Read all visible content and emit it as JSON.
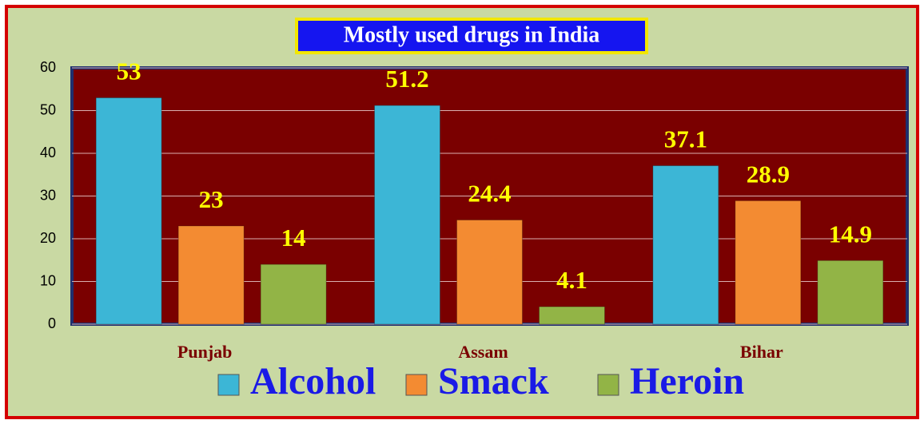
{
  "chart_data": {
    "type": "bar",
    "title": "Mostly used drugs in India",
    "categories": [
      "Punjab",
      "Assam",
      "Bihar"
    ],
    "series": [
      {
        "name": "Alcohol",
        "color": "#3cb6d6",
        "values": [
          53,
          51.2,
          37.1
        ]
      },
      {
        "name": "Smack",
        "color": "#f38b32",
        "values": [
          23,
          24.4,
          28.9
        ]
      },
      {
        "name": "Heroin",
        "color": "#92b446",
        "values": [
          14,
          4.1,
          14.9
        ]
      }
    ],
    "ylim": [
      0,
      60
    ],
    "yticks": [
      0,
      10,
      20,
      30,
      40,
      50,
      60
    ],
    "grid": true,
    "legend": "bottom"
  }
}
